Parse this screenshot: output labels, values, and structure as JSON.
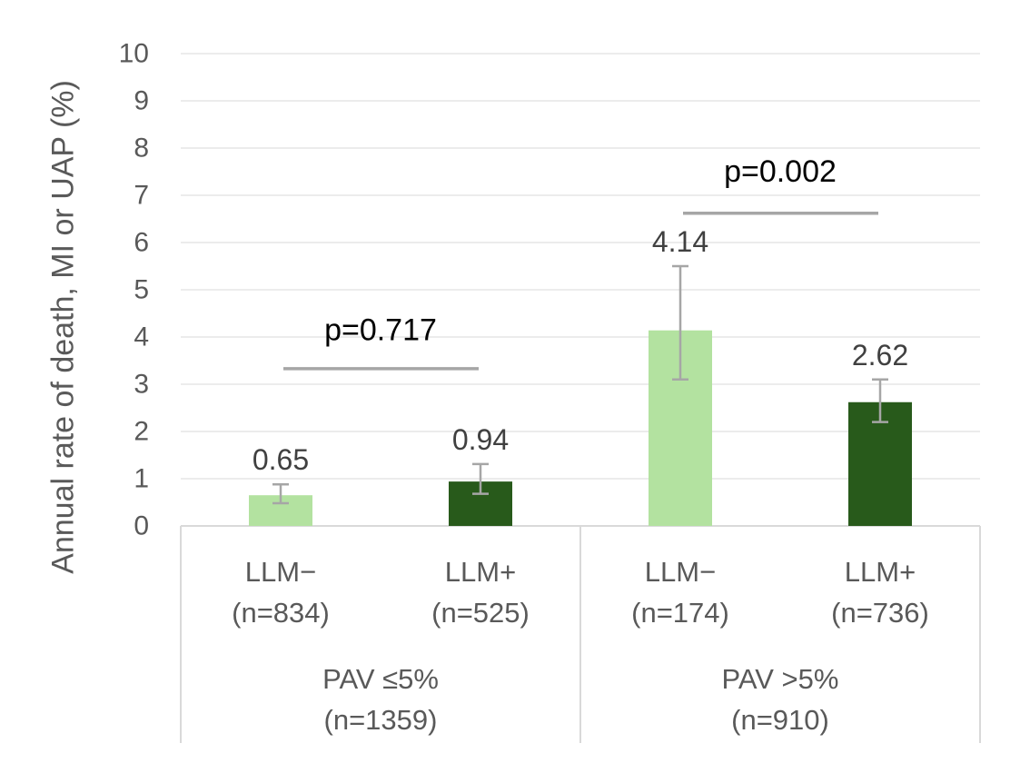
{
  "chart_data": {
    "type": "bar",
    "ylabel": "Annual rate of death, MI or UAP (%)",
    "ylim": [
      0,
      10
    ],
    "yticks": [
      0,
      1,
      2,
      3,
      4,
      5,
      6,
      7,
      8,
      9,
      10
    ],
    "grid": true,
    "bars": [
      {
        "label": "LLM−",
        "n": "(n=834)",
        "value": 0.65,
        "err_low": 0.48,
        "err_high": 0.88,
        "color": "#b3e2a0",
        "value_label": "0.65"
      },
      {
        "label": "LLM+",
        "n": "(n=525)",
        "value": 0.94,
        "err_low": 0.68,
        "err_high": 1.31,
        "color": "#285a1b",
        "value_label": "0.94"
      },
      {
        "label": "LLM−",
        "n": "(n=174)",
        "value": 4.14,
        "err_low": 3.1,
        "err_high": 5.5,
        "color": "#b3e2a0",
        "value_label": "4.14"
      },
      {
        "label": "LLM+",
        "n": "(n=736)",
        "value": 2.62,
        "err_low": 2.2,
        "err_high": 3.1,
        "color": "#285a1b",
        "value_label": "2.62"
      }
    ],
    "groups": [
      {
        "label": "PAV ≤5%",
        "n": "(n=1359)"
      },
      {
        "label": "PAV >5%",
        "n": "(n=910)"
      }
    ],
    "annotations": [
      {
        "text": "p=0.717",
        "line_y": 3.33,
        "text_y": 4.14
      },
      {
        "text": "p=0.002",
        "line_y": 6.62,
        "text_y": 7.5
      }
    ],
    "colors": {
      "axis": "#d9d9d9",
      "grid": "#d9d9d9",
      "text": "#595959",
      "error": "#a6a6a6",
      "pline": "#a6a6a6"
    }
  }
}
